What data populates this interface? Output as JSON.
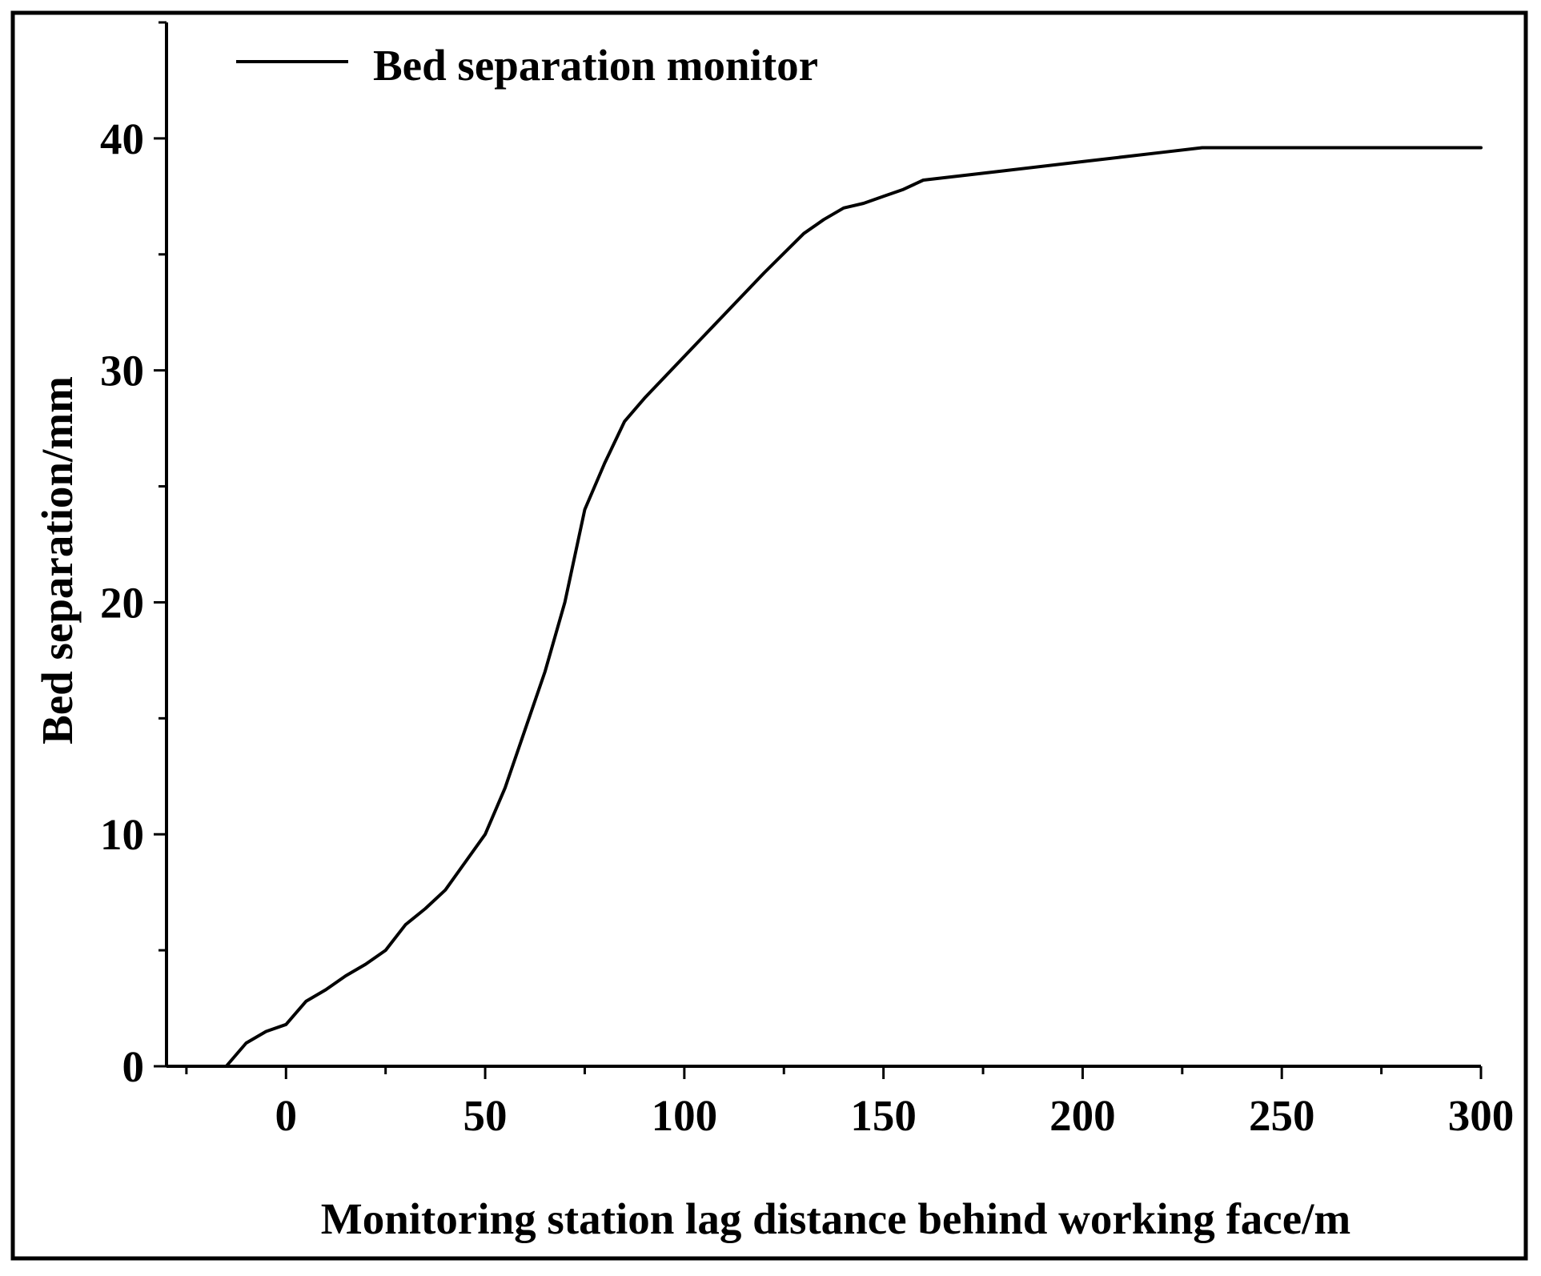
{
  "chart_data": {
    "type": "line",
    "title": "",
    "xlabel": "Monitoring station lag distance behind working face/m",
    "ylabel": "Bed separation/mm",
    "xlim": [
      -30,
      300
    ],
    "ylim": [
      0,
      45
    ],
    "x_ticks": [
      0,
      50,
      100,
      150,
      200,
      250,
      300
    ],
    "x_tick_labels": [
      "0",
      "50",
      "100",
      "150",
      "200",
      "250",
      "300"
    ],
    "y_ticks": [
      0,
      10,
      20,
      30,
      40
    ],
    "y_tick_labels": [
      "0",
      "10",
      "20",
      "30",
      "40"
    ],
    "grid": false,
    "legend_position": "top-left",
    "series": [
      {
        "name": "Bed separation monitor",
        "color": "#000000",
        "x": [
          -25,
          -20,
          -15,
          -10,
          -5,
          0,
          5,
          10,
          15,
          20,
          25,
          30,
          35,
          40,
          45,
          50,
          55,
          60,
          65,
          70,
          75,
          80,
          85,
          90,
          100,
          110,
          120,
          130,
          135,
          140,
          145,
          150,
          155,
          160,
          180,
          200,
          220,
          230,
          300
        ],
        "y": [
          0,
          0,
          0,
          1.0,
          1.5,
          1.8,
          2.8,
          3.3,
          3.9,
          4.4,
          5.0,
          6.1,
          6.8,
          7.6,
          8.8,
          10.0,
          12.0,
          14.5,
          17.0,
          20.0,
          24.0,
          26.0,
          27.8,
          28.8,
          30.6,
          32.4,
          34.2,
          35.9,
          36.5,
          37.0,
          37.2,
          37.5,
          37.8,
          38.2,
          38.6,
          39.0,
          39.4,
          39.6,
          39.6
        ]
      }
    ]
  }
}
